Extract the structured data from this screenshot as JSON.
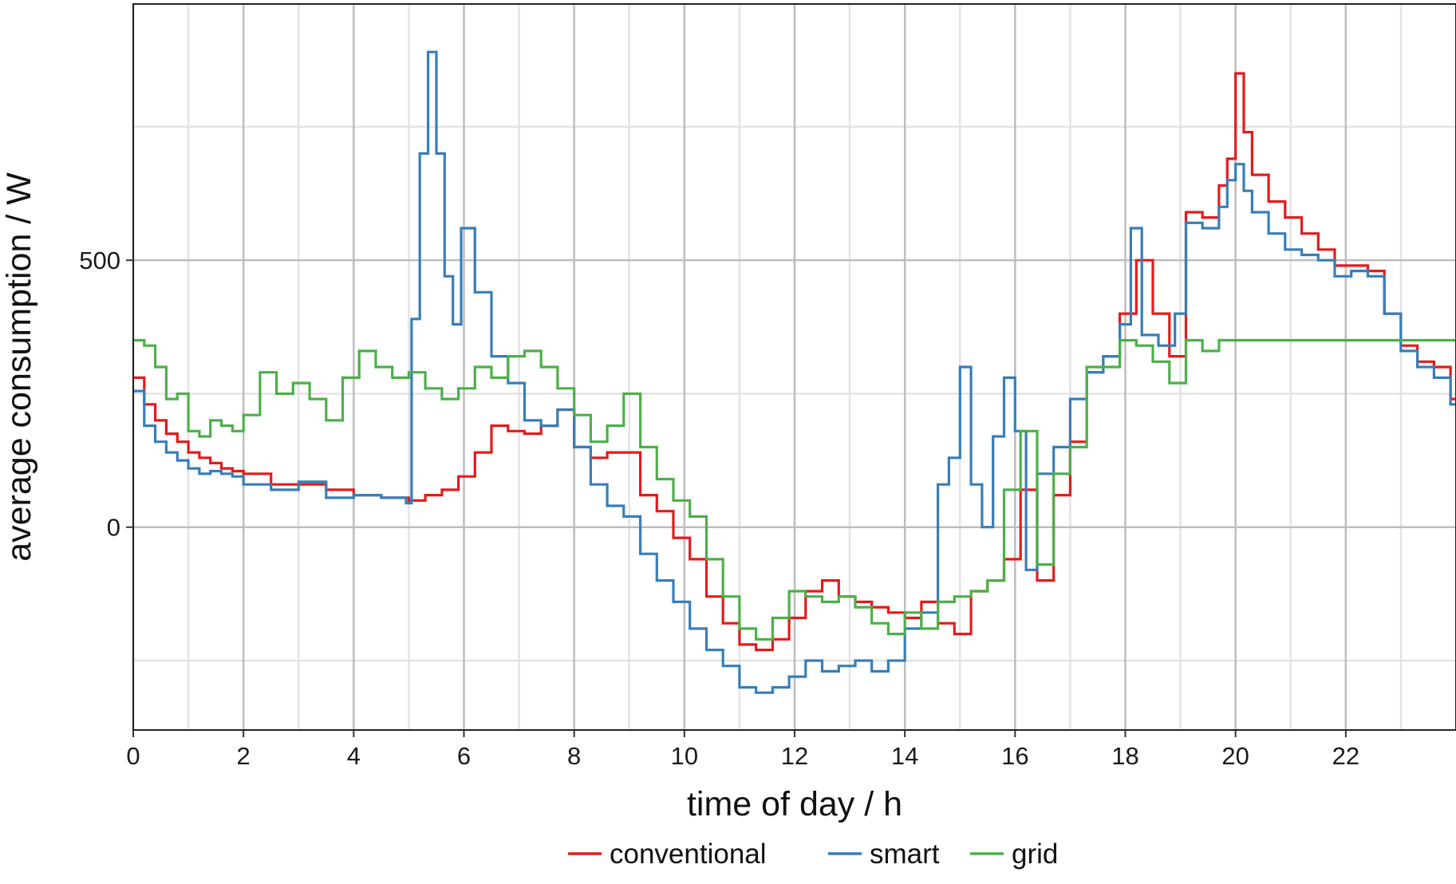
{
  "chart_data": {
    "type": "line",
    "step": true,
    "title": "",
    "xlabel": "time of day / h",
    "ylabel": "average consumption / W",
    "xlim": [
      0,
      24
    ],
    "ylim": [
      -380,
      980
    ],
    "x_ticks": [
      0,
      2,
      4,
      6,
      8,
      10,
      12,
      14,
      16,
      18,
      20,
      22
    ],
    "x_tick_labels": [
      "0",
      "2",
      "4",
      "6",
      "8",
      "10",
      "12",
      "14",
      "16",
      "18",
      "20",
      "22"
    ],
    "y_ticks": [
      0,
      500
    ],
    "y_tick_labels": [
      "0",
      "500"
    ],
    "y_minor_gridlines": [
      -250,
      250,
      750
    ],
    "grid": true,
    "legend_position": "bottom",
    "series": [
      {
        "name": "conventional",
        "color": "#e41a1c",
        "x": [
          0,
          0.2,
          0.4,
          0.6,
          0.8,
          1.0,
          1.2,
          1.4,
          1.6,
          1.8,
          2.0,
          2.5,
          3.0,
          3.5,
          4.0,
          4.5,
          5.0,
          5.3,
          5.6,
          5.9,
          6.2,
          6.5,
          6.8,
          7.1,
          7.4,
          7.7,
          8.0,
          8.3,
          8.6,
          8.9,
          9.2,
          9.5,
          9.8,
          10.1,
          10.4,
          10.7,
          11.0,
          11.3,
          11.6,
          11.9,
          12.2,
          12.5,
          12.8,
          13.1,
          13.4,
          13.7,
          14.0,
          14.3,
          14.6,
          14.9,
          15.2,
          15.5,
          15.8,
          16.1,
          16.4,
          16.7,
          17.0,
          17.3,
          17.6,
          17.9,
          18.2,
          18.5,
          18.8,
          19.1,
          19.4,
          19.7,
          19.85,
          20.0,
          20.15,
          20.3,
          20.6,
          20.9,
          21.2,
          21.5,
          21.8,
          22.1,
          22.4,
          22.7,
          23.0,
          23.3,
          23.6,
          23.9
        ],
        "y": [
          280,
          230,
          200,
          175,
          160,
          140,
          130,
          120,
          110,
          105,
          100,
          80,
          80,
          70,
          60,
          55,
          50,
          60,
          70,
          95,
          140,
          190,
          180,
          175,
          190,
          220,
          150,
          130,
          140,
          140,
          60,
          30,
          -20,
          -60,
          -130,
          -180,
          -220,
          -230,
          -210,
          -170,
          -120,
          -100,
          -130,
          -140,
          -150,
          -160,
          -170,
          -140,
          -180,
          -200,
          -120,
          -100,
          -60,
          70,
          -100,
          60,
          160,
          290,
          320,
          400,
          500,
          400,
          320,
          590,
          580,
          640,
          690,
          850,
          740,
          660,
          610,
          580,
          550,
          520,
          490,
          490,
          480,
          400,
          340,
          310,
          300,
          240
        ]
      },
      {
        "name": "smart",
        "color": "#377eb8",
        "x": [
          0,
          0.2,
          0.4,
          0.6,
          0.8,
          1.0,
          1.2,
          1.4,
          1.6,
          1.8,
          2.0,
          2.5,
          3.0,
          3.5,
          4.0,
          4.5,
          4.95,
          5.05,
          5.2,
          5.35,
          5.5,
          5.65,
          5.8,
          5.95,
          6.2,
          6.5,
          6.8,
          7.1,
          7.4,
          7.7,
          8.0,
          8.3,
          8.6,
          8.9,
          9.2,
          9.5,
          9.8,
          10.1,
          10.4,
          10.7,
          11.0,
          11.3,
          11.6,
          11.9,
          12.2,
          12.5,
          12.8,
          13.1,
          13.4,
          13.7,
          14.0,
          14.3,
          14.6,
          14.8,
          15.0,
          15.2,
          15.4,
          15.6,
          15.8,
          16.0,
          16.2,
          16.4,
          16.7,
          17.0,
          17.3,
          17.6,
          17.9,
          18.1,
          18.3,
          18.6,
          18.9,
          19.1,
          19.4,
          19.7,
          19.85,
          20.0,
          20.15,
          20.3,
          20.6,
          20.9,
          21.2,
          21.5,
          21.8,
          22.1,
          22.4,
          22.7,
          23.0,
          23.3,
          23.6,
          23.9
        ],
        "y": [
          255,
          190,
          160,
          140,
          125,
          110,
          100,
          105,
          100,
          95,
          80,
          70,
          85,
          55,
          60,
          55,
          45,
          390,
          700,
          890,
          700,
          470,
          380,
          560,
          440,
          320,
          270,
          200,
          190,
          220,
          150,
          80,
          40,
          20,
          -50,
          -100,
          -140,
          -190,
          -230,
          -260,
          -300,
          -310,
          -300,
          -280,
          -250,
          -270,
          -260,
          -250,
          -270,
          -250,
          -190,
          -160,
          80,
          130,
          300,
          80,
          0,
          170,
          280,
          180,
          -80,
          100,
          150,
          240,
          290,
          320,
          380,
          560,
          360,
          340,
          400,
          570,
          560,
          600,
          650,
          680,
          630,
          590,
          550,
          520,
          510,
          500,
          470,
          480,
          470,
          400,
          330,
          300,
          280,
          230
        ]
      },
      {
        "name": "grid",
        "color": "#4daf4a",
        "x": [
          0,
          0.2,
          0.4,
          0.6,
          0.8,
          1.0,
          1.2,
          1.4,
          1.6,
          1.8,
          2.0,
          2.3,
          2.6,
          2.9,
          3.2,
          3.5,
          3.8,
          4.1,
          4.4,
          4.7,
          5.0,
          5.3,
          5.6,
          5.9,
          6.2,
          6.5,
          6.8,
          7.1,
          7.4,
          7.7,
          8.0,
          8.3,
          8.6,
          8.9,
          9.2,
          9.5,
          9.8,
          10.1,
          10.4,
          10.7,
          11.0,
          11.3,
          11.6,
          11.9,
          12.2,
          12.5,
          12.8,
          13.1,
          13.4,
          13.7,
          14.0,
          14.3,
          14.6,
          14.9,
          15.2,
          15.5,
          15.8,
          16.1,
          16.4,
          16.7,
          17.0,
          17.3,
          17.6,
          17.9,
          18.2,
          18.5,
          18.8,
          19.1,
          19.4,
          19.7,
          20.0,
          21.0,
          22.0,
          23.0,
          23.9
        ],
        "y": [
          350,
          340,
          300,
          240,
          250,
          180,
          170,
          200,
          190,
          180,
          210,
          290,
          250,
          270,
          240,
          200,
          280,
          330,
          300,
          280,
          290,
          260,
          240,
          260,
          300,
          280,
          320,
          330,
          300,
          260,
          210,
          160,
          190,
          250,
          150,
          90,
          50,
          20,
          -60,
          -130,
          -190,
          -210,
          -170,
          -120,
          -130,
          -140,
          -130,
          -150,
          -180,
          -200,
          -160,
          -190,
          -140,
          -130,
          -120,
          -100,
          70,
          180,
          -70,
          100,
          150,
          300,
          300,
          350,
          340,
          310,
          270,
          350,
          330,
          350,
          350,
          350,
          350,
          350,
          350
        ]
      }
    ]
  }
}
